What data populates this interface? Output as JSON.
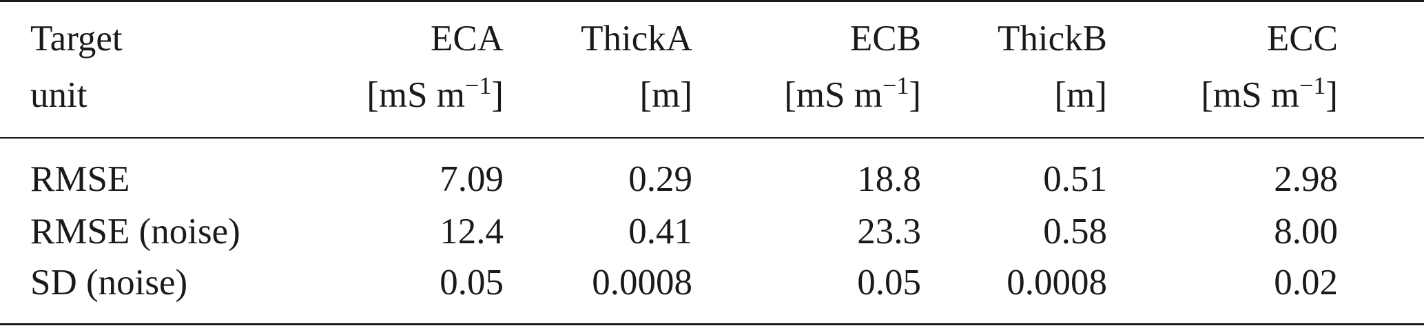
{
  "table": {
    "header": {
      "row1": [
        "Target",
        "ECA",
        "ThickA",
        "ECB",
        "ThickB",
        "ECC"
      ],
      "row2": [
        "unit",
        "[mS m",
        "[m]",
        "[mS m",
        "[m]",
        "[mS m"
      ],
      "exp": "−1",
      "close_bracket": "]"
    },
    "rows": [
      {
        "label": "RMSE",
        "values": [
          "7.09",
          "0.29",
          "18.8",
          "0.51",
          "2.98"
        ]
      },
      {
        "label": "RMSE (noise)",
        "values": [
          "12.4",
          "0.41",
          "23.3",
          "0.58",
          "8.00"
        ]
      },
      {
        "label": "SD (noise)",
        "values": [
          "0.05",
          "0.0008",
          "0.05",
          "0.0008",
          "0.02"
        ]
      }
    ]
  }
}
